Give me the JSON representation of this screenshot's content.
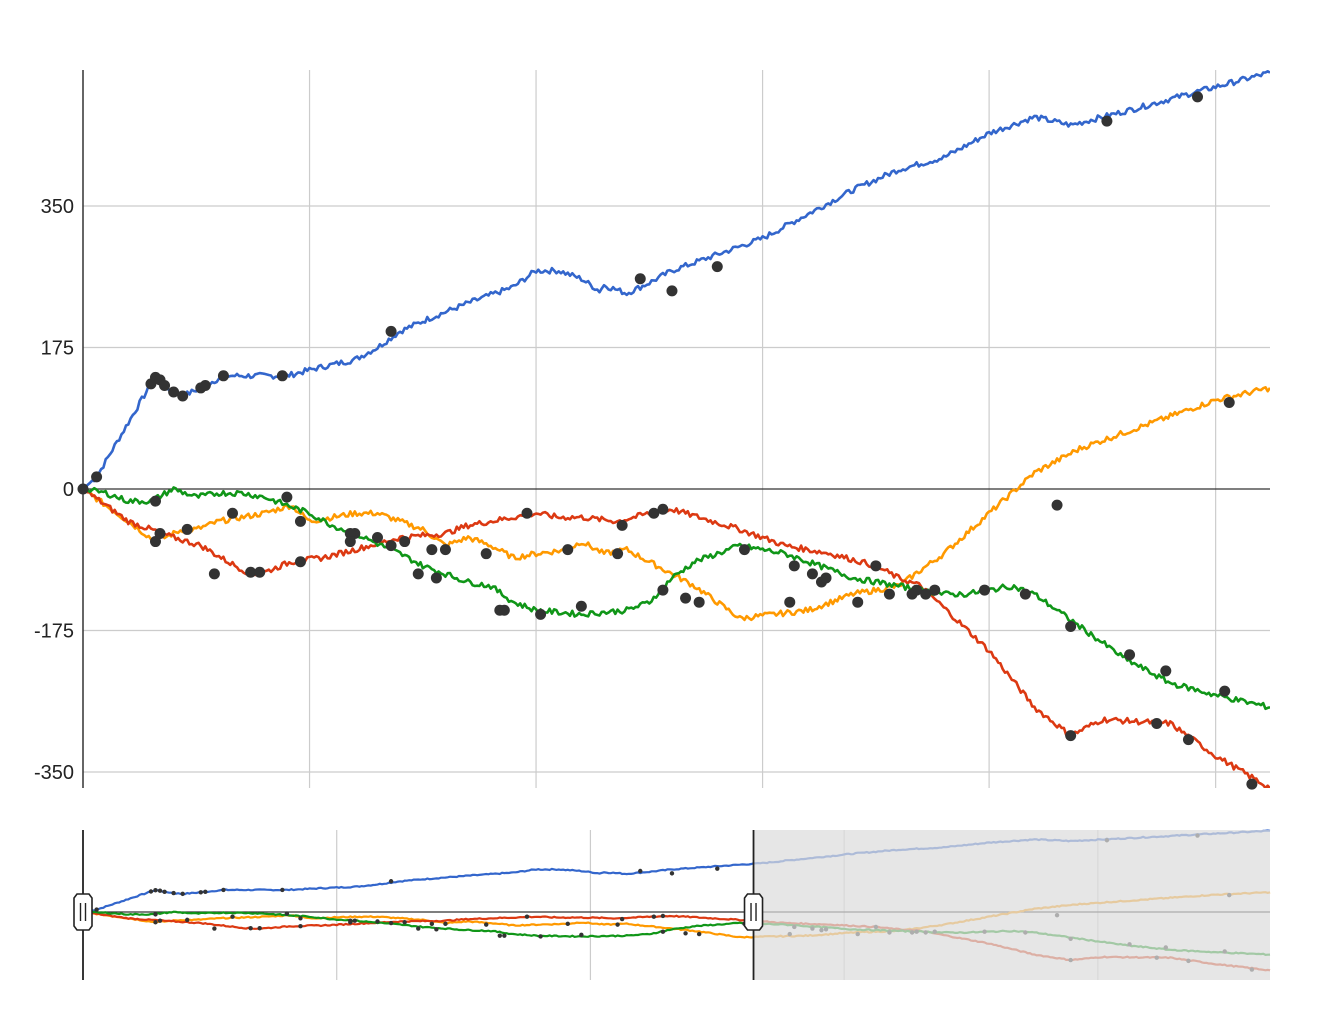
{
  "chart_data": [
    {
      "type": "line",
      "role": "main-plot",
      "ylim": [
        -360,
        520
      ],
      "x_range": [
        0,
        262
      ],
      "yticks": [
        {
          "value": 350,
          "label": "350"
        },
        {
          "value": 175,
          "label": "175"
        },
        {
          "value": 0,
          "label": "0"
        },
        {
          "value": -175,
          "label": "-175"
        },
        {
          "value": -350,
          "label": "-350"
        }
      ],
      "x_gridlines": [
        50,
        100,
        150,
        200,
        250
      ],
      "grid": true,
      "markers": true,
      "series": [
        {
          "color": "#3366cc",
          "x": [
            0,
            3,
            15,
            16,
            17,
            18,
            20,
            22,
            26,
            27,
            31,
            40,
            45,
            52,
            60,
            65,
            70,
            72,
            76,
            85,
            95,
            100,
            105,
            110,
            114,
            115,
            120,
            125,
            130,
            140,
            150,
            160,
            170,
            180,
            190,
            200,
            210,
            218,
            225,
            232,
            245,
            262
          ],
          "y": [
            0,
            15,
            130,
            138,
            135,
            128,
            120,
            115,
            125,
            128,
            140,
            140,
            140,
            150,
            160,
            175,
            195,
            200,
            210,
            230,
            250,
            270,
            270,
            260,
            245,
            252,
            242,
            255,
            270,
            290,
            310,
            340,
            370,
            395,
            410,
            440,
            460,
            450,
            460,
            470,
            490,
            515
          ]
        },
        {
          "color": "#ff9900",
          "x": [
            0,
            5,
            10,
            16,
            20,
            22,
            25,
            30,
            35,
            40,
            46,
            50,
            55,
            60,
            65,
            70,
            75,
            80,
            85,
            90,
            95,
            100,
            107,
            110,
            115,
            120,
            135,
            145,
            160,
            170,
            180,
            190,
            200,
            210,
            220,
            230,
            240,
            250,
            262
          ],
          "y": [
            0,
            -20,
            -40,
            -65,
            -55,
            -50,
            -50,
            -40,
            -35,
            -30,
            -20,
            -40,
            -35,
            -30,
            -30,
            -40,
            -50,
            -70,
            -60,
            -70,
            -85,
            -80,
            -75,
            -65,
            -80,
            -75,
            -120,
            -160,
            -150,
            -130,
            -120,
            -80,
            -30,
            20,
            50,
            70,
            90,
            110,
            125
          ]
        },
        {
          "color": "#dc3912",
          "x": [
            0,
            10,
            20,
            26,
            32,
            37,
            40,
            46,
            53,
            60,
            70,
            80,
            85,
            90,
            100,
            105,
            110,
            118,
            125,
            130,
            145,
            155,
            165,
            175,
            180,
            185,
            200,
            210,
            218,
            225,
            240,
            250,
            262
          ],
          "y": [
            0,
            -40,
            -60,
            -70,
            -90,
            -105,
            -103,
            -90,
            -85,
            -75,
            -60,
            -55,
            -45,
            -40,
            -30,
            -35,
            -35,
            -40,
            -30,
            -25,
            -50,
            -70,
            -80,
            -95,
            -110,
            -120,
            -200,
            -270,
            -305,
            -285,
            -290,
            -330,
            -370
          ]
        },
        {
          "color": "#109618",
          "x": [
            0,
            5,
            10,
            15,
            20,
            25,
            30,
            35,
            40,
            45,
            50,
            55,
            60,
            70,
            75,
            80,
            85,
            90,
            95,
            100,
            110,
            120,
            125,
            130,
            135,
            145,
            155,
            165,
            170,
            175,
            180,
            185,
            190,
            195,
            200,
            205,
            210,
            220,
            230,
            240,
            250,
            262
          ],
          "y": [
            0,
            -5,
            -15,
            -15,
            0,
            -10,
            -5,
            -5,
            -10,
            -20,
            -30,
            -45,
            -55,
            -80,
            -95,
            -105,
            -115,
            -120,
            -140,
            -150,
            -155,
            -150,
            -140,
            -110,
            -90,
            -70,
            -80,
            -100,
            -110,
            -115,
            -120,
            -125,
            -130,
            -130,
            -125,
            -120,
            -130,
            -170,
            -210,
            -240,
            -255,
            -270
          ]
        }
      ],
      "point_markers": [
        [
          0,
          0
        ],
        [
          3,
          15
        ],
        [
          15,
          130
        ],
        [
          16,
          138
        ],
        [
          17,
          135
        ],
        [
          18,
          128
        ],
        [
          20,
          120
        ],
        [
          22,
          115
        ],
        [
          26,
          125
        ],
        [
          27,
          128
        ],
        [
          31,
          140
        ],
        [
          44,
          140
        ],
        [
          68,
          195
        ],
        [
          123,
          260
        ],
        [
          130,
          245
        ],
        [
          140,
          275
        ],
        [
          226,
          455
        ],
        [
          246,
          485
        ],
        [
          16,
          -65
        ],
        [
          17,
          -55
        ],
        [
          23,
          -50
        ],
        [
          33,
          -30
        ],
        [
          48,
          -40
        ],
        [
          60,
          -55
        ],
        [
          65,
          -60
        ],
        [
          68,
          -70
        ],
        [
          71,
          -65
        ],
        [
          77,
          -75
        ],
        [
          80,
          -75
        ],
        [
          89,
          -80
        ],
        [
          107,
          -75
        ],
        [
          118,
          -80
        ],
        [
          126,
          -30
        ],
        [
          128,
          -25
        ],
        [
          133,
          -135
        ],
        [
          136,
          -140
        ],
        [
          156,
          -140
        ],
        [
          171,
          -140
        ],
        [
          178,
          -130
        ],
        [
          186,
          -130
        ],
        [
          215,
          -20
        ],
        [
          253,
          107
        ],
        [
          16,
          -15
        ],
        [
          29,
          -105
        ],
        [
          37,
          -103
        ],
        [
          39,
          -103
        ],
        [
          48,
          -90
        ],
        [
          59,
          -55
        ],
        [
          98,
          -30
        ],
        [
          119,
          -45
        ],
        [
          163,
          -115
        ],
        [
          175,
          -95
        ],
        [
          183,
          -130
        ],
        [
          218,
          -305
        ],
        [
          237,
          -290
        ],
        [
          244,
          -310
        ],
        [
          258,
          -365
        ],
        [
          45,
          -10
        ],
        [
          59,
          -65
        ],
        [
          74,
          -105
        ],
        [
          78,
          -110
        ],
        [
          92,
          -150
        ],
        [
          93,
          -150
        ],
        [
          101,
          -155
        ],
        [
          110,
          -145
        ],
        [
          128,
          -125
        ],
        [
          146,
          -75
        ],
        [
          157,
          -95
        ],
        [
          161,
          -105
        ],
        [
          164,
          -110
        ],
        [
          184,
          -125
        ],
        [
          188,
          -125
        ],
        [
          199,
          -125
        ],
        [
          208,
          -130
        ],
        [
          218,
          -170
        ],
        [
          231,
          -205
        ],
        [
          239,
          -225
        ],
        [
          252,
          -250
        ]
      ]
    },
    {
      "type": "line",
      "role": "range-navigator",
      "x_range": [
        0,
        262
      ],
      "ylim": [
        -380,
        520
      ],
      "x_gridlines": [
        56,
        112,
        168,
        224
      ],
      "selected_range": [
        0,
        148
      ],
      "series_colors": [
        "#3366cc",
        "#ff9900",
        "#dc3912",
        "#109618"
      ]
    }
  ]
}
